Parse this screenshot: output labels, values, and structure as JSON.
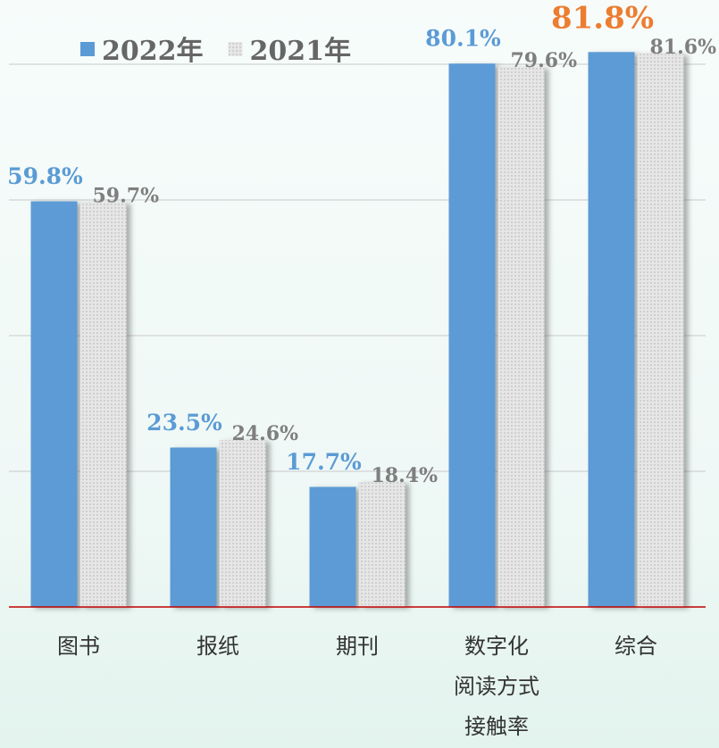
{
  "chart_data": {
    "type": "bar",
    "categories": [
      "图书",
      "报纸",
      "期刊",
      "数字化\n阅读方式\n接触率",
      "综合"
    ],
    "series": [
      {
        "name": "2022年",
        "color": "#5b9bd5",
        "values": [
          59.8,
          23.5,
          17.7,
          80.1,
          81.8
        ],
        "value_labels": [
          "59.8%",
          "23.5%",
          "17.7%",
          "80.1%",
          "81.8%"
        ],
        "label_colors": [
          "#5b9bd5",
          "#5b9bd5",
          "#5b9bd5",
          "#5b9bd5",
          "#ed7d31"
        ]
      },
      {
        "name": "2021年",
        "color": "#dedede",
        "values": [
          59.7,
          24.6,
          18.4,
          79.6,
          81.6
        ],
        "value_labels": [
          "59.7%",
          "24.6%",
          "18.4%",
          "79.6%",
          "81.6%"
        ],
        "label_colors": [
          "#7f7f7f",
          "#7f7f7f",
          "#7f7f7f",
          "#7f7f7f",
          "#7f7f7f"
        ]
      }
    ],
    "ylim": [
      0,
      80
    ],
    "yticks": [
      0,
      20,
      40,
      60,
      80
    ],
    "grid": true,
    "legend": "top-left"
  }
}
